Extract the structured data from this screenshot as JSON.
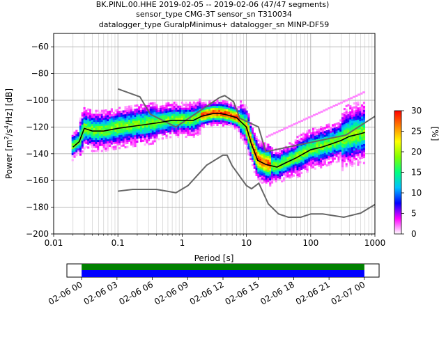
{
  "title_lines": [
    "BK.PINL.00.HHE   2019-02-05 -- 2019-02-06  (47/47 segments)",
    "sensor_type CMG-3T sensor_sn T310034",
    "datalogger_type GuralpMinimus+ datalogger_sn MINP-DF59"
  ],
  "chart_data": [
    {
      "type": "heatmap",
      "name": "ppsd",
      "xlabel": "Period [s]",
      "ylabel_parts": [
        "Power [m",
        "2",
        "/s",
        "4",
        "/Hz] [dB]"
      ],
      "xscale": "log",
      "xlim": [
        0.01,
        1000
      ],
      "ylim": [
        -200,
        -50
      ],
      "x_ticks": [
        0.01,
        0.1,
        1,
        10,
        100,
        1000
      ],
      "x_tick_labels": [
        "0.01",
        "0.1",
        "1",
        "10",
        "100",
        "1000"
      ],
      "y_ticks": [
        -200,
        -180,
        -160,
        -140,
        -120,
        -100,
        -80,
        -60
      ],
      "y_tick_labels": [
        "−200",
        "−180",
        "−160",
        "−140",
        "−120",
        "−100",
        "−80",
        "−60"
      ],
      "grid": true,
      "colorbar": {
        "label": "[%]",
        "range": [
          0,
          30
        ],
        "ticks": [
          0,
          5,
          10,
          15,
          20,
          25,
          30
        ],
        "tick_labels": [
          "0",
          "5",
          "10",
          "15",
          "20",
          "25",
          "30"
        ],
        "colormap": [
          "#ffffff",
          "#ff00ff",
          "#0000ff",
          "#00c0ff",
          "#00ff80",
          "#80ff00",
          "#ffff00",
          "#ff8000",
          "#ff0000"
        ]
      },
      "mean_curve": {
        "color": "#000000",
        "x": [
          0.02,
          0.025,
          0.03,
          0.04,
          0.06,
          0.1,
          0.2,
          0.4,
          0.7,
          1,
          1.5,
          2,
          3,
          4,
          5,
          7,
          10,
          12,
          15,
          20,
          30,
          40,
          60,
          100,
          150,
          200,
          300,
          400,
          600,
          700
        ],
        "y": [
          -135,
          -131,
          -121,
          -123,
          -123,
          -121,
          -119,
          -117,
          -115,
          -115,
          -115,
          -112,
          -110,
          -110,
          -111,
          -113,
          -120,
          -133,
          -145,
          -148,
          -150,
          -147,
          -143,
          -137,
          -135,
          -133,
          -130,
          -127,
          -125,
          -124
        ]
      },
      "nhnm": {
        "color": "#666666",
        "x": [
          0.1,
          0.22,
          0.32,
          0.8,
          3.8,
          4.6,
          6.3,
          7.9,
          15.4,
          20,
          354.8,
          1000
        ],
        "y": [
          -91.5,
          -97.4,
          -110.5,
          -120,
          -98,
          -96.5,
          -101,
          -113.5,
          -120,
          -138.5,
          -126,
          -112
        ]
      },
      "nlnm": {
        "color": "#666666",
        "x": [
          0.1,
          0.17,
          0.4,
          0.8,
          1.24,
          2.4,
          4.3,
          5,
          6,
          10,
          12,
          15.6,
          21.9,
          31.6,
          45,
          70,
          101,
          154,
          328,
          600,
          1000
        ],
        "y": [
          -168,
          -166.7,
          -166.7,
          -169.2,
          -163.7,
          -148.6,
          -141.1,
          -141.1,
          -149,
          -163.8,
          -166.2,
          -162.1,
          -177.5,
          -185,
          -187.5,
          -187.5,
          -185,
          -185,
          -187.5,
          -184.4,
          -178
        ]
      }
    },
    {
      "type": "bar",
      "name": "data-availability",
      "x_ticks": [
        "02-06 00",
        "02-06 03",
        "02-06 06",
        "02-06 09",
        "02-06 12",
        "02-06 15",
        "02-06 18",
        "02-06 21",
        "02-07 00"
      ],
      "xlim": [
        "02-05 22:45",
        "02-07 01:15"
      ],
      "bands": [
        {
          "start": "02-06 00",
          "end": "02-07 00",
          "color": "#008000",
          "row": "top"
        },
        {
          "start": "02-06 00",
          "end": "02-07 00",
          "color": "#0000ff",
          "row": "bottom"
        }
      ]
    }
  ]
}
